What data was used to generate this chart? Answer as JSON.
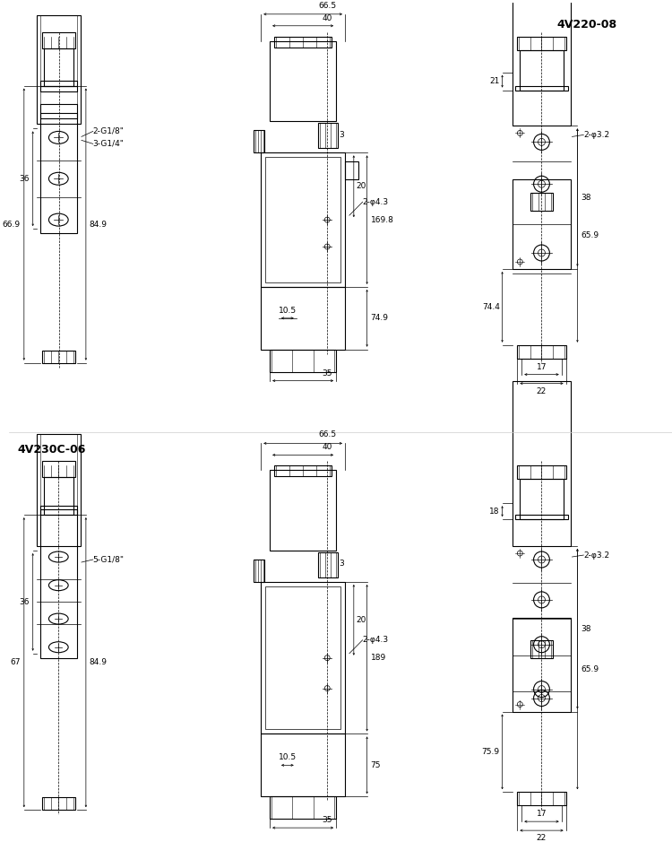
{
  "title1": "4V220-08",
  "title2": "4V230C-06",
  "bg_color": "#ffffff",
  "line_color": "#000000",
  "dim_color": "#000000",
  "text_color": "#000000",
  "font_size_title": 9,
  "font_size_dim": 6.5,
  "font_size_label": 6.5,
  "top_section": {
    "dims": {
      "width_66_5": "66.5",
      "width_40": "40",
      "width_35": "35",
      "height_169_8": "169.8",
      "height_74_9": "74.9",
      "height_20": "20",
      "height_10_5": "10.5",
      "height_36": "36",
      "height_66_9": "66.9",
      "height_84_9": "84.9",
      "label_2g18": "2-G1/8\"",
      "label_3g14": "3-G1/4\"",
      "label_2phi43": "2-φ4.3",
      "label_2phi32": "2-φ3.2",
      "dim_21": "21",
      "dim_38": "38",
      "dim_74_4": "74.4",
      "dim_65_9": "65.9",
      "dim_17": "17",
      "dim_22": "22",
      "dim_3": "3"
    }
  },
  "bottom_section": {
    "dims": {
      "width_66_5": "66.5",
      "width_40": "40",
      "width_35": "35",
      "height_189": "189",
      "height_75": "75",
      "height_20": "20",
      "height_10_5": "10.5",
      "height_36": "36",
      "height_67": "67",
      "height_84_9": "84.9",
      "label_5g18": "5-G1/8\"",
      "label_2phi43": "2-φ4.3",
      "label_2phi32": "2-φ3.2",
      "dim_18": "18",
      "dim_38": "38",
      "dim_75_9": "75.9",
      "dim_65_9": "65.9",
      "dim_17": "17",
      "dim_22": "22",
      "dim_3": "3"
    }
  }
}
